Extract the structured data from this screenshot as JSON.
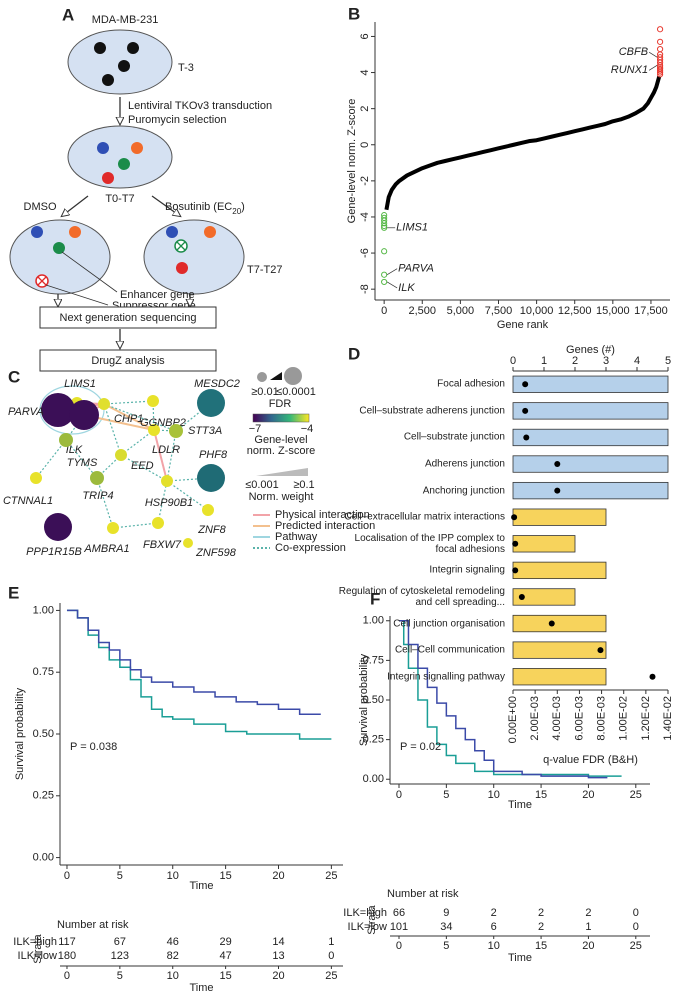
{
  "panel_labels": [
    "A",
    "B",
    "C",
    "D",
    "E",
    "F"
  ],
  "workflow": {
    "cell_line": "MDA-MB-231",
    "stage1": "T-3",
    "step1": [
      "Lentiviral TKOv3 transduction",
      "Puromycin selection"
    ],
    "stage2": "T0-T7",
    "arm1": "DMSO",
    "arm2": {
      "text": "Bosutinib (EC",
      "sub": "20",
      "end": ")"
    },
    "stage3": "T7-T27",
    "enhancer": "Enhancer gene",
    "suppressor": "Suppressor gene",
    "box1": "Next generation sequencing",
    "box2": "DrugZ analysis"
  },
  "network": {
    "nodes": [
      {
        "label": "LIMS1",
        "color": "#e5e22b"
      },
      {
        "label": "PARVA",
        "color": "#3b0f57"
      },
      {
        "label": "ILK",
        "color": "#3b0f57"
      },
      {
        "label": "CHP1",
        "color": "#e0df2f"
      },
      {
        "label": "TYMS",
        "color": "#9cba3c"
      },
      {
        "label": "CTNNAL1",
        "color": "#e8e22a"
      },
      {
        "label": "PPP1R15B",
        "color": "#3b0f57"
      },
      {
        "label": "TRIP4",
        "color": "#9cba3c"
      },
      {
        "label": "EED",
        "color": "#d9dc2f"
      },
      {
        "label": "LDLR",
        "color": "#e8e22a"
      },
      {
        "label": "GGNBP2",
        "color": "#e8e22a"
      },
      {
        "label": "STT3A",
        "color": "#a8c23a"
      },
      {
        "label": "MESDC2",
        "color": "#21717a"
      },
      {
        "label": "PHF8",
        "color": "#1f6b75"
      },
      {
        "label": "HSP90B1",
        "color": "#e3e02c"
      },
      {
        "label": "ZNF8",
        "color": "#e8e22a"
      },
      {
        "label": "ZNF598",
        "color": "#e8e22a"
      },
      {
        "label": "AMBRA1",
        "color": "#e8e22a"
      },
      {
        "label": "FBXW7",
        "color": "#e8e22a"
      }
    ],
    "legend": {
      "fdr_title": "FDR",
      "fdr_low": "≥0.01",
      "fdr_high": "≤0.0001",
      "z_title": [
        "Gene-level",
        "norm. Z-score"
      ],
      "z_ticks": [
        {
          "value": -7,
          "label": "−7"
        },
        {
          "value": -4,
          "label": "−4"
        }
      ],
      "weight_low": "≤0.001",
      "weight_high": "≥0.1",
      "weight_title": "Norm. weight",
      "edges": [
        {
          "label": "Physical interaction",
          "color": "#f2a3a8"
        },
        {
          "label": "Predicted interaction",
          "color": "#f3c08e"
        },
        {
          "label": "Pathway",
          "color": "#9fd6e0"
        },
        {
          "label": "Co-expression",
          "color": "#5ab3aa"
        }
      ]
    }
  },
  "chart_data": [
    {
      "type": "scatter",
      "xlabel": "Gene rank",
      "ylabel": "Gene-level norm. Z-score",
      "xlim": [
        -600,
        18750
      ],
      "xticks": [
        0,
        {
          "value": 2500,
          "label": "2,500"
        },
        {
          "value": 5000,
          "label": "5,000"
        },
        {
          "value": 7500,
          "label": "7,500"
        },
        {
          "value": 10000,
          "label": "10,000"
        },
        {
          "value": 12500,
          "label": "12,500"
        },
        {
          "value": 15000,
          "label": "15,000"
        },
        {
          "value": 17500,
          "label": "17,500"
        }
      ],
      "ylim": [
        -8.6,
        6.8
      ],
      "yticks": [
        -8,
        -6,
        -4,
        -2,
        0,
        2,
        4,
        6
      ],
      "series": [
        {
          "type": "line",
          "color": "#000000",
          "x": [
            150,
            300,
            500,
            750,
            1000,
            1500,
            2000,
            2500,
            3000,
            3500,
            4000,
            4500,
            5000,
            5500,
            6000,
            6500,
            7000,
            7500,
            8000,
            8500,
            9000,
            9500,
            10000,
            10500,
            11000,
            11500,
            12000,
            12500,
            13000,
            13500,
            14000,
            14500,
            15000,
            15500,
            16000,
            16500,
            17000,
            17300,
            17500,
            17700,
            17850,
            17950,
            18050
          ],
          "values": [
            -3.6,
            -2.9,
            -2.5,
            -2.2,
            -2.0,
            -1.7,
            -1.5,
            -1.3,
            -1.15,
            -1.0,
            -0.9,
            -0.8,
            -0.7,
            -0.6,
            -0.5,
            -0.4,
            -0.3,
            -0.2,
            -0.1,
            0.0,
            0.1,
            0.2,
            0.25,
            0.35,
            0.45,
            0.55,
            0.65,
            0.75,
            0.85,
            0.95,
            1.05,
            1.15,
            1.3,
            1.4,
            1.55,
            1.75,
            2.0,
            2.3,
            2.6,
            2.9,
            3.2,
            3.5,
            3.8
          ]
        },
        {
          "color": "#56b847",
          "x": [
            0,
            0,
            0,
            0,
            0,
            0,
            0,
            0,
            0
          ],
          "values": [
            -3.9,
            -4.05,
            -4.2,
            -4.35,
            -4.5,
            -4.6,
            -5.9,
            -7.2,
            -7.6
          ]
        },
        {
          "color": "#e8392f",
          "x": [
            18100,
            18100,
            18100,
            18100,
            18100,
            18100,
            18100,
            18100,
            18100,
            18100,
            18100,
            18100,
            18100
          ],
          "values": [
            3.9,
            4.0,
            4.1,
            4.2,
            4.3,
            4.4,
            4.55,
            4.7,
            4.85,
            5.0,
            5.3,
            5.7,
            6.4
          ]
        }
      ],
      "annotations": [
        {
          "label": "CBFB",
          "x": 18100,
          "y": 4.85
        },
        {
          "label": "RUNX1",
          "x": 18100,
          "y": 4.4
        },
        {
          "label": "LIMS1",
          "x": 0,
          "y": -4.6
        },
        {
          "label": "PARVA",
          "x": 0,
          "y": -7.2
        },
        {
          "label": "ILK",
          "x": 0,
          "y": -7.6
        }
      ]
    },
    {
      "type": "bar",
      "orientation": "horizontal",
      "categories": [
        "Focal adhesion",
        "Cell–substrate adherens junction",
        "Cell–substrate junction",
        "Adherens junction",
        "Anchoring junction",
        "Cell–extracellular matrix interactions",
        "Localisation of the IPP complex to focal adhesions",
        "Integrin signaling",
        "Regulation of cytoskeletal remodeling and cell spreading...",
        "Cell junction organisation",
        "Cell–Cell communication",
        "Integrin signalling pathway"
      ],
      "xlabel": "Genes (#)",
      "xlim": [
        0,
        5
      ],
      "xticks": [
        0,
        1,
        2,
        3,
        4,
        5
      ],
      "x2label": "q-value FDR (B&H)",
      "x2lim": [
        0,
        0.014
      ],
      "x2ticks": [
        {
          "value": 0,
          "label": "0.00E+00"
        },
        {
          "value": 0.002,
          "label": "2.00E-03"
        },
        {
          "value": 0.004,
          "label": "4.00E-03"
        },
        {
          "value": 0.006,
          "label": "6.00E-03"
        },
        {
          "value": 0.008,
          "label": "8.00E-03"
        },
        {
          "value": 0.01,
          "label": "1.00E-02"
        },
        {
          "value": 0.012,
          "label": "1.20E-02"
        },
        {
          "value": 0.014,
          "label": "1.40E-02"
        }
      ],
      "series": [
        {
          "values": [
            5,
            5,
            5,
            5,
            5,
            3,
            2,
            3,
            2,
            3,
            3,
            3
          ],
          "colors": [
            "#b5d0ea",
            "#b5d0ea",
            "#b5d0ea",
            "#b5d0ea",
            "#b5d0ea",
            "#f7d35c",
            "#f7d35c",
            "#f7d35c",
            "#f7d35c",
            "#f7d35c",
            "#f7d35c",
            "#f7d35c"
          ]
        },
        {
          "type": "scatter",
          "axis": "x2",
          "color": "#000000",
          "values": [
            0.0011,
            0.0011,
            0.0012,
            0.004,
            0.004,
            0.0001,
            0.0002,
            0.0002,
            0.0008,
            0.0035,
            0.0079,
            0.0126
          ]
        }
      ]
    },
    {
      "type": "line",
      "step": true,
      "xlabel": "Time",
      "ylabel": "Survival probability",
      "xlim": [
        -0.66,
        26.1
      ],
      "xticks": [
        0,
        5,
        10,
        15,
        20,
        25
      ],
      "ylim": [
        -0.03,
        1.03
      ],
      "yticks": [
        {
          "value": 0,
          "label": "0.00"
        },
        0.25,
        {
          "value": 0.5,
          "label": "0.50"
        },
        0.75,
        {
          "value": 1,
          "label": "1.00"
        }
      ],
      "annotation": "P = 0.038",
      "series": [
        {
          "name": "ILK=high",
          "color": "#1a9e96",
          "x": [
            0,
            1,
            2,
            3,
            4,
            5,
            6,
            7,
            8,
            9,
            10,
            12,
            15,
            17,
            20,
            22,
            25
          ],
          "values": [
            1,
            0.97,
            0.9,
            0.85,
            0.8,
            0.77,
            0.72,
            0.65,
            0.6,
            0.57,
            0.56,
            0.54,
            0.51,
            0.5,
            0.5,
            0.48,
            0.48
          ]
        },
        {
          "name": "ILK=low",
          "color": "#3b4aa8",
          "x": [
            0,
            1,
            2,
            3,
            4,
            5,
            6,
            7,
            8,
            10,
            12,
            14,
            16,
            18,
            20,
            22,
            24
          ],
          "values": [
            1,
            0.97,
            0.92,
            0.87,
            0.84,
            0.8,
            0.76,
            0.73,
            0.71,
            0.69,
            0.67,
            0.65,
            0.63,
            0.62,
            0.6,
            0.58,
            0.58
          ]
        }
      ],
      "risk_table": {
        "title": "Number at risk",
        "strata_label": "Strata",
        "rows": [
          [
            117,
            67,
            46,
            29,
            14,
            1
          ],
          [
            180,
            123,
            82,
            47,
            13,
            0
          ]
        ]
      }
    },
    {
      "type": "line",
      "step": true,
      "xlabel": "Time",
      "ylabel": "Survival probability",
      "xlim": [
        -0.95,
        26.5
      ],
      "xticks": [
        0,
        5,
        10,
        15,
        20,
        25
      ],
      "ylim": [
        -0.03,
        1.03
      ],
      "yticks": [
        {
          "value": 0,
          "label": "0.00"
        },
        0.25,
        {
          "value": 0.5,
          "label": "0.50"
        },
        0.75,
        {
          "value": 1,
          "label": "1.00"
        }
      ],
      "annotation": "P = 0.02",
      "series": [
        {
          "name": "ILK=high",
          "color": "#1a9e96",
          "x": [
            0,
            0.5,
            1,
            2,
            3,
            4,
            5,
            6,
            8,
            10,
            15,
            20,
            23.5
          ],
          "values": [
            1,
            0.85,
            0.7,
            0.5,
            0.33,
            0.22,
            0.15,
            0.1,
            0.05,
            0.03,
            0.03,
            0.02,
            0.02
          ]
        },
        {
          "name": "ILK=low",
          "color": "#3b4aa8",
          "x": [
            0,
            1,
            2,
            3,
            4,
            5,
            6,
            7,
            8,
            9,
            10,
            13,
            15,
            20,
            22
          ],
          "values": [
            1,
            0.85,
            0.7,
            0.58,
            0.48,
            0.4,
            0.32,
            0.25,
            0.18,
            0.12,
            0.05,
            0.03,
            0.02,
            0.01,
            0.01
          ]
        }
      ],
      "risk_table": {
        "title": "Number at risk",
        "strata_label": "Strata",
        "rows": [
          [
            66,
            9,
            2,
            2,
            2,
            0
          ],
          [
            101,
            34,
            6,
            2,
            1,
            0
          ]
        ]
      }
    }
  ]
}
